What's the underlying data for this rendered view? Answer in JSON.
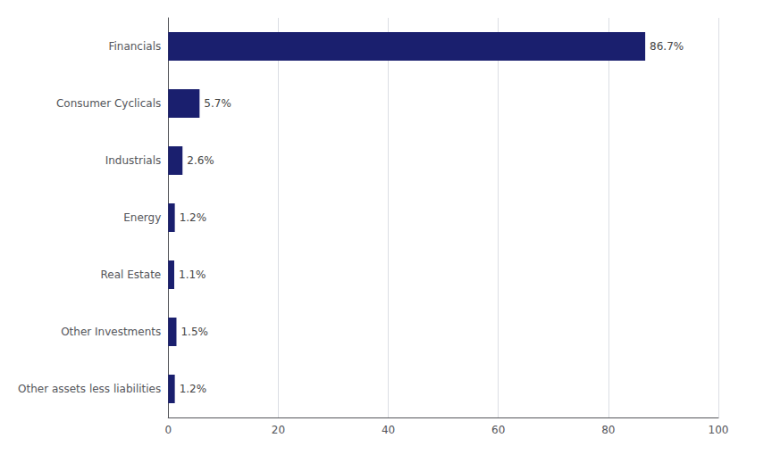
{
  "chart_data": {
    "type": "bar",
    "orientation": "horizontal",
    "categories": [
      "Financials",
      "Consumer Cyclicals",
      "Industrials",
      "Energy",
      "Real Estate",
      "Other Investments",
      "Other assets less liabilities"
    ],
    "values": [
      86.7,
      5.7,
      2.6,
      1.2,
      1.1,
      1.5,
      1.2
    ],
    "value_labels": [
      "86.7%",
      "5.7%",
      "2.6%",
      "1.2%",
      "1.1%",
      "1.5%",
      "1.2%"
    ],
    "data_labels": true,
    "color": "#1a1f6e",
    "xlim": [
      0,
      100
    ],
    "xticks": [
      0,
      20,
      40,
      60,
      80,
      100
    ],
    "grid": true
  }
}
